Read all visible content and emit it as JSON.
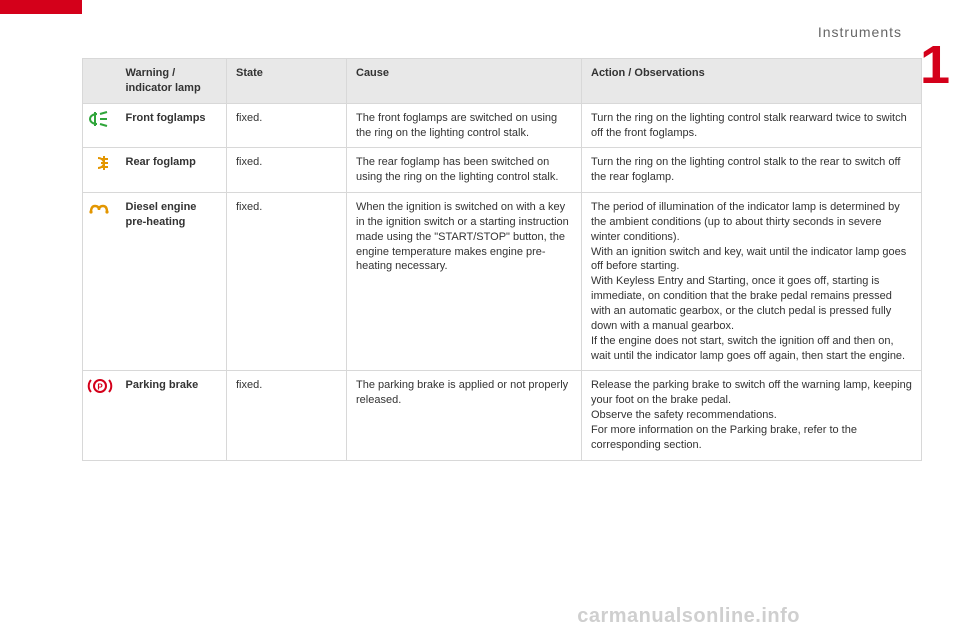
{
  "section_title": "Instruments",
  "chapter_number": "1",
  "footer": "carmanualsonline.info",
  "colors": {
    "accent": "#d4001a",
    "header_bg": "#e8e8e8",
    "border": "#d8d8d8",
    "icon_green": "#2fa53a",
    "icon_amber": "#e39600",
    "icon_red": "#d4001a",
    "footer_text": "#cfcfcf"
  },
  "table": {
    "headers": {
      "lamp": "Warning / indicator lamp",
      "state": "State",
      "cause": "Cause",
      "action": "Action / Observations"
    },
    "rows": [
      {
        "icon": "front-foglamps",
        "name": "Front foglamps",
        "state": "fixed.",
        "cause": "The front foglamps are switched on using the ring on the lighting control stalk.",
        "action": "Turn the ring on the lighting control stalk rearward twice to switch off the front foglamps."
      },
      {
        "icon": "rear-foglamp",
        "name": "Rear foglamp",
        "state": "fixed.",
        "cause": "The rear foglamp has been switched on using the ring on the lighting control stalk.",
        "action": "Turn the ring on the lighting control stalk to the rear to switch off the rear foglamp."
      },
      {
        "icon": "diesel-preheat",
        "name": "Diesel engine pre-heating",
        "state": "fixed.",
        "cause": "When the ignition is switched on with a key in the ignition switch or a starting instruction made using the \"START/STOP\" button, the engine temperature makes engine pre-heating necessary.",
        "action": "The period of illumination of the indicator lamp is determined by the ambient conditions (up to about thirty seconds in severe winter conditions).\nWith an ignition switch and key, wait until the indicator lamp goes off before starting.\nWith Keyless Entry and Starting, once it goes off, starting is immediate, on condition that the brake pedal remains pressed with an automatic gearbox, or the clutch pedal is pressed fully down with a manual gearbox.\nIf the engine does not start, switch the ignition off and then on, wait until the indicator lamp goes off again, then start the engine."
      },
      {
        "icon": "parking-brake",
        "name": "Parking brake",
        "state": "fixed.",
        "cause": "The parking brake is applied or not properly released.",
        "action": "Release the parking brake to switch off the warning lamp, keeping your foot on the brake pedal.\nObserve the safety recommendations.\nFor more information on the Parking brake, refer to the corresponding section."
      }
    ]
  }
}
